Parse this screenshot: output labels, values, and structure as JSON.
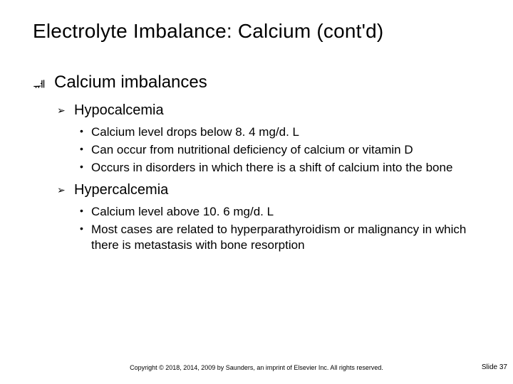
{
  "title": "Electrolyte Imbalance: Calcium (cont'd)",
  "level1": {
    "label": "Calcium imbalances"
  },
  "hypo": {
    "heading": "Hypocalcemia",
    "b1": "Calcium level drops below 8. 4 mg/d. L",
    "b2": "Can occur from nutritional deficiency of calcium or vitamin D",
    "b3": "Occurs in disorders in which there is a shift of calcium into the bone"
  },
  "hyper": {
    "heading": "Hypercalcemia",
    "b1": "Calcium level above 10. 6 mg/d. L",
    "b2": "Most cases are related to hyperparathyroidism or malignancy in which there is metastasis with bone resorption"
  },
  "footer": "Copyright © 2018, 2014, 2009 by Saunders, an imprint of Elsevier Inc. All rights reserved.",
  "slidenum": "Slide 37"
}
